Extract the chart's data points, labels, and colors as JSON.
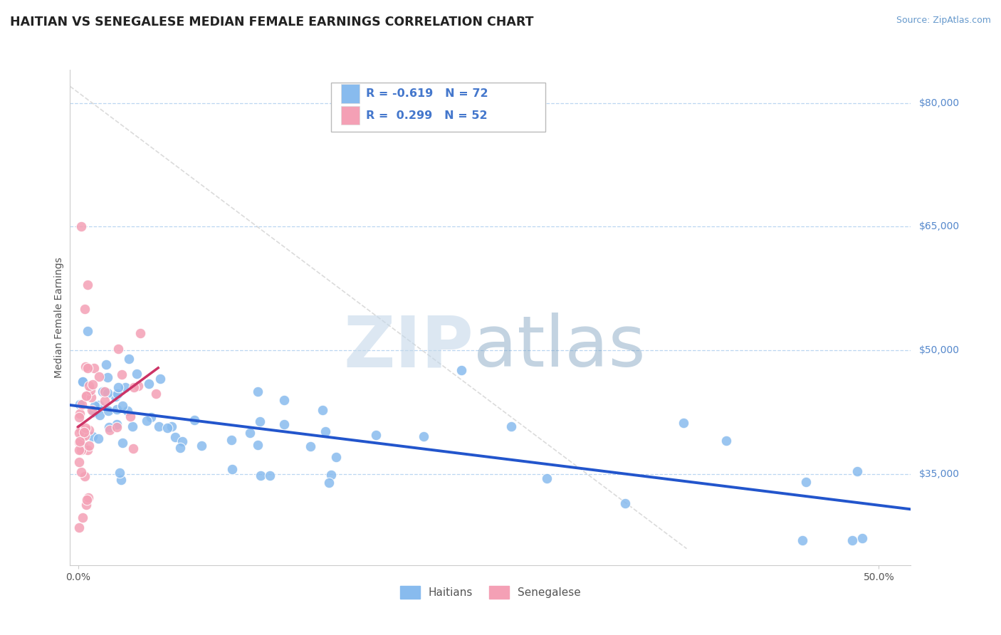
{
  "title": "HAITIAN VS SENEGALESE MEDIAN FEMALE EARNINGS CORRELATION CHART",
  "source": "Source: ZipAtlas.com",
  "ylabel": "Median Female Earnings",
  "xlim": [
    -0.005,
    0.52
  ],
  "ylim": [
    24000,
    84000
  ],
  "yticks": [
    35000,
    50000,
    65000,
    80000
  ],
  "ytick_labels": [
    "$35,000",
    "$50,000",
    "$65,000",
    "$80,000"
  ],
  "xtick_positions": [
    0.0,
    0.5
  ],
  "xtick_labels": [
    "0.0%",
    "50.0%"
  ],
  "haitian_color": "#88bbee",
  "senegalese_color": "#f4a0b5",
  "haitian_line_color": "#2255cc",
  "senegalese_line_color": "#cc3366",
  "diag_line_color": "#cccccc",
  "grid_color": "#aaccee",
  "background_color": "#ffffff",
  "legend_R_haitian": "-0.619",
  "legend_N_haitian": "72",
  "legend_R_senegalese": "0.299",
  "legend_N_senegalese": "52",
  "title_color": "#222222",
  "source_color": "#6699cc",
  "ylabel_color": "#555555",
  "tick_label_color": "#555555",
  "ytick_label_color": "#5588cc",
  "legend_text_color": "#4466bb",
  "legend_RN_color": "#4477cc"
}
